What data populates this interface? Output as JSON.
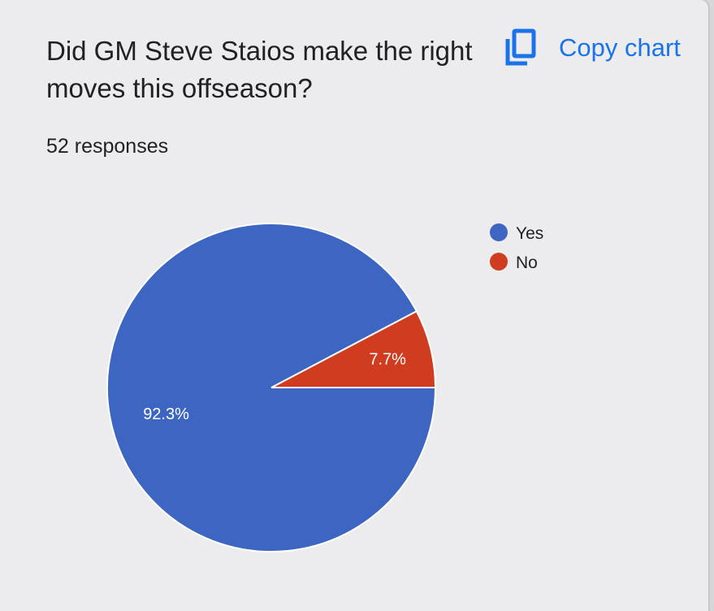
{
  "card": {
    "question": "Did GM Steve Staios make the right moves this offseason?",
    "responses_label": "52 responses",
    "copy_chart_label": "Copy chart",
    "copy_icon": "copy-icon"
  },
  "colors": {
    "accent": "#1a73e8",
    "yes": "#3c66c2",
    "no": "#cf3c1f"
  },
  "chart_data": {
    "type": "pie",
    "categories": [
      "Yes",
      "No"
    ],
    "values": [
      92.3,
      7.7
    ],
    "labels": [
      "92.3%",
      "7.7%"
    ],
    "colors": [
      "#3c66c2",
      "#cf3c1f"
    ],
    "legend_position": "right"
  }
}
